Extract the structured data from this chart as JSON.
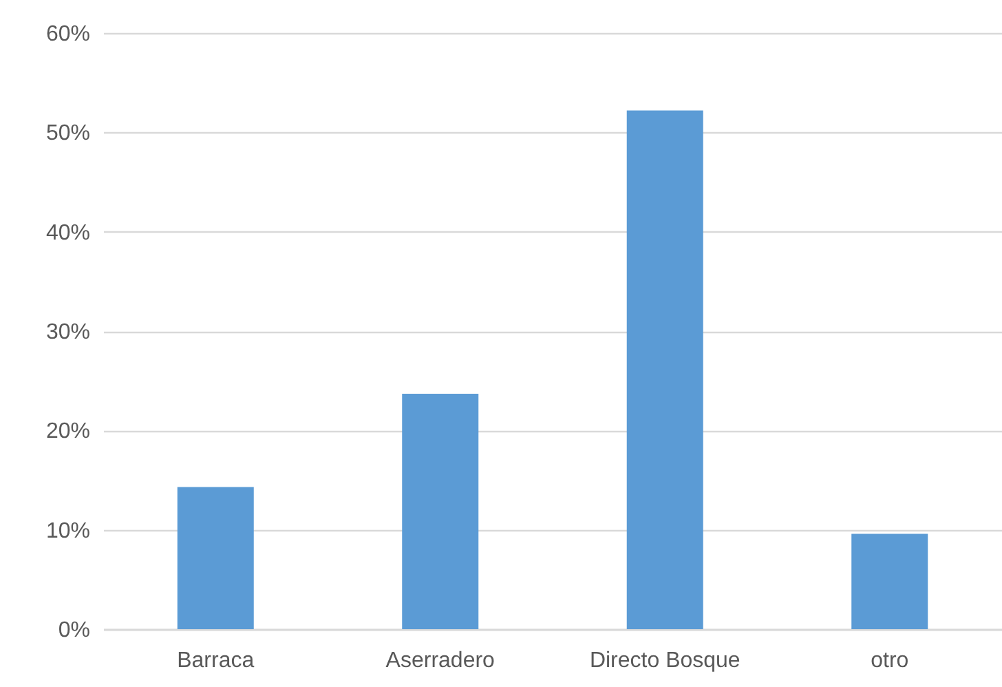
{
  "chart_data": {
    "type": "bar",
    "categories": [
      "Barraca",
      "Aserradero",
      "Directo Bosque",
      "otro"
    ],
    "values": [
      14.3,
      23.7,
      52.2,
      9.6
    ],
    "color": "#5b9bd5",
    "ylim": [
      0,
      60
    ],
    "yticks": [
      {
        "value": 0,
        "label": "0%"
      },
      {
        "value": 10,
        "label": "10%"
      },
      {
        "value": 20,
        "label": "20%"
      },
      {
        "value": 30,
        "label": "30%"
      },
      {
        "value": 40,
        "label": "40%"
      },
      {
        "value": 50,
        "label": "50%"
      },
      {
        "value": 60,
        "label": "60%"
      }
    ],
    "grid": "y"
  }
}
